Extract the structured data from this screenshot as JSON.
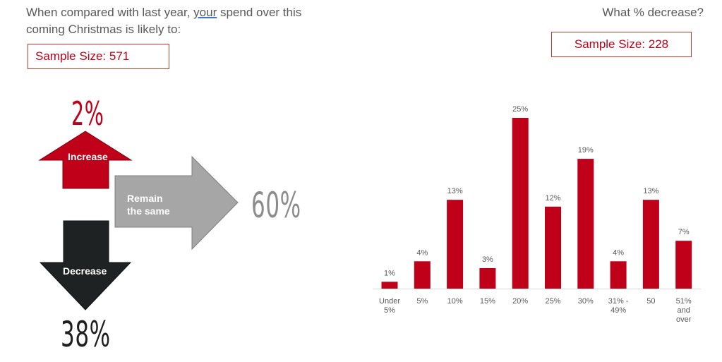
{
  "left_panel": {
    "question_part1": "When compared with last year, ",
    "question_underlined": "your",
    "question_part2": " spend over this coming Christmas is likely to:",
    "sample_size": "Sample Size: 571",
    "increase": {
      "label": "Increase",
      "percent": "2%"
    },
    "remain": {
      "label_line1": "Remain",
      "label_line2": "the same",
      "percent": "60%"
    },
    "decrease": {
      "label": "Decrease",
      "percent": "38%"
    },
    "colors": {
      "increase": "#c00018",
      "remain": "#a6a6a6",
      "decrease": "#1f2222"
    }
  },
  "right_panel": {
    "question": "What % decrease?",
    "sample_size": "Sample Size: 228"
  },
  "chart_data": {
    "type": "bar",
    "title": "",
    "xlabel": "",
    "ylabel": "",
    "categories": [
      [
        "Under",
        "5%"
      ],
      [
        "5%"
      ],
      [
        "10%"
      ],
      [
        "15%"
      ],
      [
        "20%"
      ],
      [
        "25%"
      ],
      [
        "30%"
      ],
      [
        "31% -",
        "49%"
      ],
      [
        "50"
      ],
      [
        "51%",
        "and",
        "over"
      ]
    ],
    "values": [
      1,
      4,
      13,
      3,
      25,
      12,
      19,
      4,
      13,
      7
    ],
    "data_labels": [
      "1%",
      "4%",
      "13%",
      "3%",
      "25%",
      "12%",
      "19%",
      "4%",
      "13%",
      "7%"
    ],
    "ylim": [
      0,
      25
    ],
    "bar_color": "#c00018",
    "grid": false,
    "legend": "none"
  }
}
